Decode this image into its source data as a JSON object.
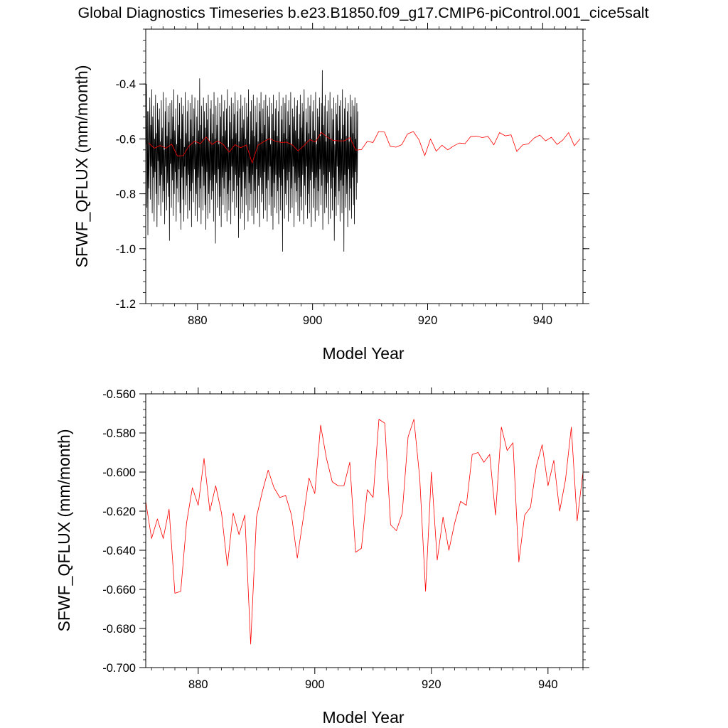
{
  "title": "Global Diagnostics Timeseries b.e23.B1850.f09_g17.CMIP6-piControl.001_cice5salt",
  "colors": {
    "monthly": "#000000",
    "annual": "#ff0000",
    "axes": "#000000"
  },
  "chart_data": [
    {
      "type": "line",
      "xlabel": "Model Year",
      "ylabel": "SFWF_QFLUX (mm/month)",
      "xlim": [
        871,
        947
      ],
      "ylim": [
        -1.2,
        -0.2
      ],
      "x_ticks": [
        880,
        900,
        920,
        940
      ],
      "y_ticks": [
        -1.2,
        -1.0,
        -0.8,
        -0.6,
        -0.4
      ],
      "y_tick_labels": [
        "-1.2",
        "-1.0",
        "-0.8",
        "-0.6",
        "-0.4"
      ],
      "x_tick_labels": [
        "880",
        "900",
        "920",
        "940"
      ],
      "series": [
        {
          "color": "#000000",
          "x_start": 871.04,
          "x_step": 0.0833,
          "values": [
            -0.62,
            -0.4,
            -0.85,
            -0.5,
            -0.95,
            -0.5,
            -0.78,
            -0.62,
            -0.45,
            -0.82,
            -0.55,
            -0.7,
            -0.42,
            -0.87,
            -0.52,
            -0.74,
            -0.48,
            -0.9,
            -0.6,
            -0.72,
            -0.44,
            -0.8,
            -0.58,
            -0.92,
            -0.47,
            -0.68,
            -0.53,
            -0.84,
            -0.49,
            -0.77,
            -0.61,
            -0.88,
            -0.46,
            -0.73,
            -0.56,
            -0.83,
            -0.43,
            -0.79,
            -0.64,
            -0.91,
            -0.5,
            -0.7,
            -0.45,
            -0.86,
            -0.59,
            -0.76,
            -0.48,
            -0.81,
            -0.54,
            -0.97,
            -0.47,
            -0.69,
            -0.6,
            -0.85,
            -0.46,
            -0.75,
            -0.52,
            -0.88,
            -0.42,
            -0.8,
            -0.57,
            -0.72,
            -0.49,
            -0.9,
            -0.62,
            -0.78,
            -0.44,
            -0.83,
            -0.55,
            -0.71,
            -0.47,
            -0.87,
            -0.6,
            -0.93,
            -0.45,
            -0.74,
            -0.51,
            -0.82,
            -0.48,
            -0.9,
            -0.63,
            -0.7,
            -0.43,
            -0.84,
            -0.58,
            -0.77,
            -0.5,
            -0.89,
            -0.46,
            -0.73,
            -0.61,
            -0.86,
            -0.47,
            -0.79,
            -0.53,
            -0.92,
            -0.44,
            -0.76,
            -0.59,
            -0.83,
            -0.49,
            -0.71,
            -0.45,
            -0.88,
            -0.62,
            -0.8,
            -0.52,
            -0.9,
            -0.46,
            -0.74,
            -0.57,
            -0.85,
            -0.38,
            -0.78,
            -0.55,
            -0.91,
            -0.48,
            -0.7,
            -0.6,
            -0.86,
            -0.45,
            -0.77,
            -0.5,
            -0.84,
            -0.56,
            -0.93,
            -0.47,
            -0.72,
            -0.53,
            -0.89,
            -0.44,
            -0.8,
            -0.61,
            -0.87,
            -0.49,
            -0.75,
            -0.46,
            -0.82,
            -0.58,
            -0.79,
            -0.51,
            -0.9,
            -0.43,
            -0.73,
            -0.6,
            -0.98,
            -0.48,
            -0.76,
            -0.55,
            -0.85,
            -0.45,
            -0.71,
            -0.62,
            -0.88,
            -0.47,
            -0.81,
            -0.52,
            -0.92,
            -0.44,
            -0.74,
            -0.59,
            -0.84,
            -0.5,
            -0.78,
            -0.46,
            -0.87,
            -0.57,
            -0.72,
            -0.49,
            -0.9,
            -0.42,
            -0.8,
            -0.63,
            -0.86,
            -0.48,
            -0.75,
            -0.54,
            -0.91,
            -0.45,
            -0.7,
            -0.6,
            -0.83,
            -0.47,
            -0.79,
            -0.51,
            -0.88,
            -0.43,
            -0.73,
            -0.58,
            -0.85,
            -0.5,
            -0.77,
            -0.46,
            -0.96,
            -0.61,
            -0.74,
            -0.49,
            -0.89,
            -0.44,
            -0.81,
            -0.56,
            -0.87,
            -0.48,
            -0.72,
            -0.53,
            -0.93,
            -0.45,
            -0.78,
            -0.6,
            -0.84,
            -0.47,
            -0.7,
            -0.52,
            -0.9,
            -0.42,
            -0.76,
            -0.62,
            -0.86,
            -0.5,
            -0.8,
            -0.46,
            -0.88,
            -0.57,
            -0.73,
            -0.44,
            -0.91,
            -0.59,
            -0.79,
            -0.48,
            -0.85,
            -0.54,
            -0.71,
            -0.45,
            -0.87,
            -0.61,
            -0.77,
            -0.47,
            -0.92,
            -0.5,
            -0.74,
            -0.43,
            -0.83,
            -0.58,
            -0.8,
            -0.49,
            -0.89,
            -0.46,
            -0.72,
            -0.55,
            -0.86,
            -0.44,
            -0.78,
            -0.6,
            -0.9,
            -0.48,
            -0.75,
            -0.52,
            -0.84,
            -0.45,
            -0.7,
            -0.62,
            -0.88,
            -0.47,
            -0.81,
            -0.51,
            -0.93,
            -0.44,
            -0.76,
            -0.57,
            -0.85,
            -0.49,
            -0.73,
            -0.46,
            -0.87,
            -0.59,
            -0.79,
            -0.5,
            -0.91,
            -0.43,
            -0.74,
            -0.61,
            -0.86,
            -0.48,
            -0.77,
            -0.53,
            -1.01,
            -0.45,
            -0.71,
            -0.58,
            -0.89,
            -0.47,
            -0.8,
            -0.44,
            -0.84,
            -0.6,
            -0.75,
            -0.5,
            -0.9,
            -0.46,
            -0.72,
            -0.55,
            -0.87,
            -0.43,
            -0.78,
            -0.62,
            -0.85,
            -0.49,
            -0.7,
            -0.52,
            -0.92,
            -0.45,
            -0.76,
            -0.57,
            -0.83,
            -0.48,
            -0.79,
            -0.46,
            -0.88,
            -0.6,
            -0.74,
            -0.51,
            -0.9,
            -0.44,
            -0.81,
            -0.56,
            -0.86,
            -0.47,
            -0.73,
            -0.5,
            -0.91,
            -0.42,
            -0.77,
            -0.61,
            -0.84,
            -0.49,
            -0.7,
            -0.54,
            -0.89,
            -0.45,
            -0.8,
            -0.58,
            -0.87,
            -0.48,
            -0.75,
            -0.44,
            -0.92,
            -0.6,
            -0.72,
            -0.5,
            -0.85,
            -0.46,
            -0.78,
            -0.57,
            -0.9,
            -0.43,
            -0.74,
            -0.62,
            -0.86,
            -0.49,
            -0.79,
            -0.52,
            -0.88,
            -0.45,
            -0.71,
            -0.59,
            -0.84,
            -0.47,
            -0.77,
            -0.35,
            -0.93,
            -0.55,
            -0.73,
            -0.48,
            -0.87,
            -0.44,
            -0.8,
            -0.61,
            -0.85,
            -0.5,
            -0.76,
            -0.46,
            -0.91,
            -0.58,
            -0.72,
            -0.43,
            -0.89,
            -0.6,
            -0.78,
            -0.49,
            -0.86,
            -0.53,
            -0.74,
            -0.45,
            -0.97,
            -0.62,
            -0.81,
            -0.47,
            -0.88,
            -0.51,
            -0.7,
            -0.44,
            -0.84,
            -0.57,
            -0.79,
            -0.48,
            -0.9,
            -0.46,
            -0.75,
            -0.6,
            -0.87,
            -0.42,
            -0.77,
            -0.55,
            -1.01,
            -0.49,
            -0.73,
            -0.45,
            -0.85,
            -0.59,
            -0.8,
            -0.5,
            -0.92,
            -0.47,
            -0.71,
            -0.61,
            -0.86,
            -0.44,
            -0.78,
            -0.52,
            -0.89,
            -0.46,
            -0.74,
            -0.58,
            -0.84,
            -0.48,
            -0.91,
            -0.45,
            -0.72,
            -0.6,
            -0.82,
            -0.47,
            -0.76,
            -0.5
          ]
        },
        {
          "color": "#ff0000",
          "x": [
            871.5,
            872.5,
            873.5,
            874.5,
            875.5,
            876.5,
            877.5,
            878.5,
            879.5,
            880.5,
            881.5,
            882.5,
            883.5,
            884.5,
            885.5,
            886.5,
            887.5,
            888.5,
            889.5,
            890.5,
            891.5,
            892.5,
            893.5,
            894.5,
            895.5,
            896.5,
            897.5,
            898.5,
            899.5,
            900.5,
            901.5,
            902.5,
            903.5,
            904.5,
            905.5,
            906.5,
            907.5,
            908.5,
            909.5,
            910.5,
            911.5,
            912.5,
            913.5,
            914.5,
            915.5,
            916.5,
            917.5,
            918.5,
            919.5,
            920.5,
            921.5,
            922.5,
            923.5,
            924.5,
            925.5,
            926.5,
            927.5,
            928.5,
            929.5,
            930.5,
            931.5,
            932.5,
            933.5,
            934.5,
            935.5,
            936.5,
            937.5,
            938.5,
            939.5,
            940.5,
            941.5,
            942.5,
            943.5,
            944.5,
            945.5,
            946.5
          ],
          "values": [
            -0.615,
            -0.634,
            -0.624,
            -0.634,
            -0.619,
            -0.662,
            -0.661,
            -0.626,
            -0.608,
            -0.617,
            -0.593,
            -0.62,
            -0.607,
            -0.621,
            -0.648,
            -0.621,
            -0.632,
            -0.622,
            -0.688,
            -0.623,
            -0.61,
            -0.599,
            -0.608,
            -0.613,
            -0.612,
            -0.622,
            -0.644,
            -0.624,
            -0.603,
            -0.611,
            -0.576,
            -0.593,
            -0.605,
            -0.607,
            -0.607,
            -0.595,
            -0.641,
            -0.639,
            -0.609,
            -0.613,
            -0.573,
            -0.575,
            -0.627,
            -0.63,
            -0.621,
            -0.582,
            -0.573,
            -0.603,
            -0.661,
            -0.6,
            -0.645,
            -0.623,
            -0.64,
            -0.626,
            -0.615,
            -0.617,
            -0.591,
            -0.59,
            -0.595,
            -0.591,
            -0.622,
            -0.577,
            -0.589,
            -0.585,
            -0.646,
            -0.622,
            -0.618,
            -0.597,
            -0.586,
            -0.607,
            -0.594,
            -0.62,
            -0.604,
            -0.577,
            -0.625,
            -0.6
          ]
        }
      ]
    },
    {
      "type": "line",
      "xlabel": "Model Year",
      "ylabel": "SFWF_QFLUX (mm/month)",
      "xlim": [
        871,
        946
      ],
      "ylim": [
        -0.7,
        -0.56
      ],
      "x_ticks": [
        880,
        900,
        920,
        940
      ],
      "y_ticks": [
        -0.7,
        -0.68,
        -0.66,
        -0.64,
        -0.62,
        -0.6,
        -0.58,
        -0.56
      ],
      "y_tick_labels": [
        "-0.700",
        "-0.680",
        "-0.660",
        "-0.640",
        "-0.620",
        "-0.600",
        "-0.580",
        "-0.560"
      ],
      "x_tick_labels": [
        "880",
        "900",
        "920",
        "940"
      ],
      "series": [
        {
          "color": "#ff0000",
          "x": [
            871,
            872,
            873,
            874,
            875,
            876,
            877,
            878,
            879,
            880,
            881,
            882,
            883,
            884,
            885,
            886,
            887,
            888,
            889,
            890,
            891,
            892,
            893,
            894,
            895,
            896,
            897,
            898,
            899,
            900,
            901,
            902,
            903,
            904,
            905,
            906,
            907,
            908,
            909,
            910,
            911,
            912,
            913,
            914,
            915,
            916,
            917,
            918,
            919,
            920,
            921,
            922,
            923,
            924,
            925,
            926,
            927,
            928,
            929,
            930,
            931,
            932,
            933,
            934,
            935,
            936,
            937,
            938,
            939,
            940,
            941,
            942,
            943,
            944,
            945,
            946
          ],
          "values": [
            -0.615,
            -0.634,
            -0.624,
            -0.634,
            -0.619,
            -0.662,
            -0.661,
            -0.626,
            -0.608,
            -0.617,
            -0.593,
            -0.62,
            -0.607,
            -0.621,
            -0.648,
            -0.621,
            -0.632,
            -0.622,
            -0.688,
            -0.623,
            -0.61,
            -0.599,
            -0.608,
            -0.613,
            -0.612,
            -0.622,
            -0.644,
            -0.624,
            -0.603,
            -0.611,
            -0.576,
            -0.593,
            -0.605,
            -0.607,
            -0.607,
            -0.595,
            -0.641,
            -0.639,
            -0.609,
            -0.613,
            -0.573,
            -0.575,
            -0.627,
            -0.63,
            -0.621,
            -0.582,
            -0.573,
            -0.603,
            -0.661,
            -0.6,
            -0.645,
            -0.623,
            -0.64,
            -0.626,
            -0.615,
            -0.617,
            -0.591,
            -0.59,
            -0.595,
            -0.591,
            -0.622,
            -0.577,
            -0.589,
            -0.585,
            -0.646,
            -0.622,
            -0.618,
            -0.597,
            -0.586,
            -0.607,
            -0.594,
            -0.62,
            -0.604,
            -0.577,
            -0.625,
            -0.6
          ]
        }
      ]
    }
  ]
}
